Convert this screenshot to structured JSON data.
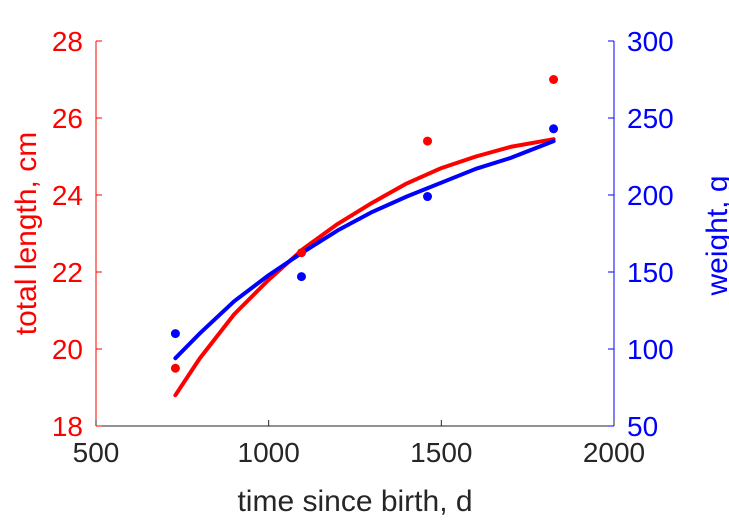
{
  "chart_data": {
    "type": "scatter",
    "xlabel": "time since birth, d",
    "ylabel_left": "total length, cm",
    "ylabel_right": "weight, g",
    "xlim": [
      500,
      2000
    ],
    "ylim_left": [
      18,
      28
    ],
    "ylim_right": [
      50,
      300
    ],
    "xticks": [
      500,
      1000,
      1500,
      2000
    ],
    "yticks_left": [
      18,
      20,
      22,
      24,
      26,
      28
    ],
    "yticks_right": [
      50,
      100,
      150,
      200,
      250,
      300
    ],
    "grid": false,
    "colors": {
      "length": "#ff0000",
      "weight": "#0000ff",
      "axis": "#262626"
    },
    "series": [
      {
        "axis": "left",
        "color": "#ff0000",
        "points": {
          "x": [
            730,
            1095,
            1460,
            1825
          ],
          "y": [
            19.5,
            22.5,
            25.4,
            27.0
          ]
        },
        "fit": {
          "x": [
            730,
            800,
            900,
            1000,
            1100,
            1200,
            1300,
            1400,
            1500,
            1600,
            1700,
            1825
          ],
          "y": [
            18.8,
            19.75,
            20.9,
            21.8,
            22.6,
            23.25,
            23.8,
            24.3,
            24.7,
            25.0,
            25.25,
            25.45
          ]
        }
      },
      {
        "axis": "right",
        "color": "#0000ff",
        "points": {
          "x": [
            730,
            1095,
            1460,
            1825
          ],
          "y": [
            110,
            147,
            199,
            243
          ]
        },
        "fit": {
          "x": [
            730,
            800,
            900,
            1000,
            1100,
            1200,
            1300,
            1400,
            1500,
            1600,
            1700,
            1825
          ],
          "y": [
            94,
            110,
            131,
            148,
            163,
            177,
            189,
            199,
            208,
            217,
            224,
            235
          ]
        }
      }
    ]
  }
}
